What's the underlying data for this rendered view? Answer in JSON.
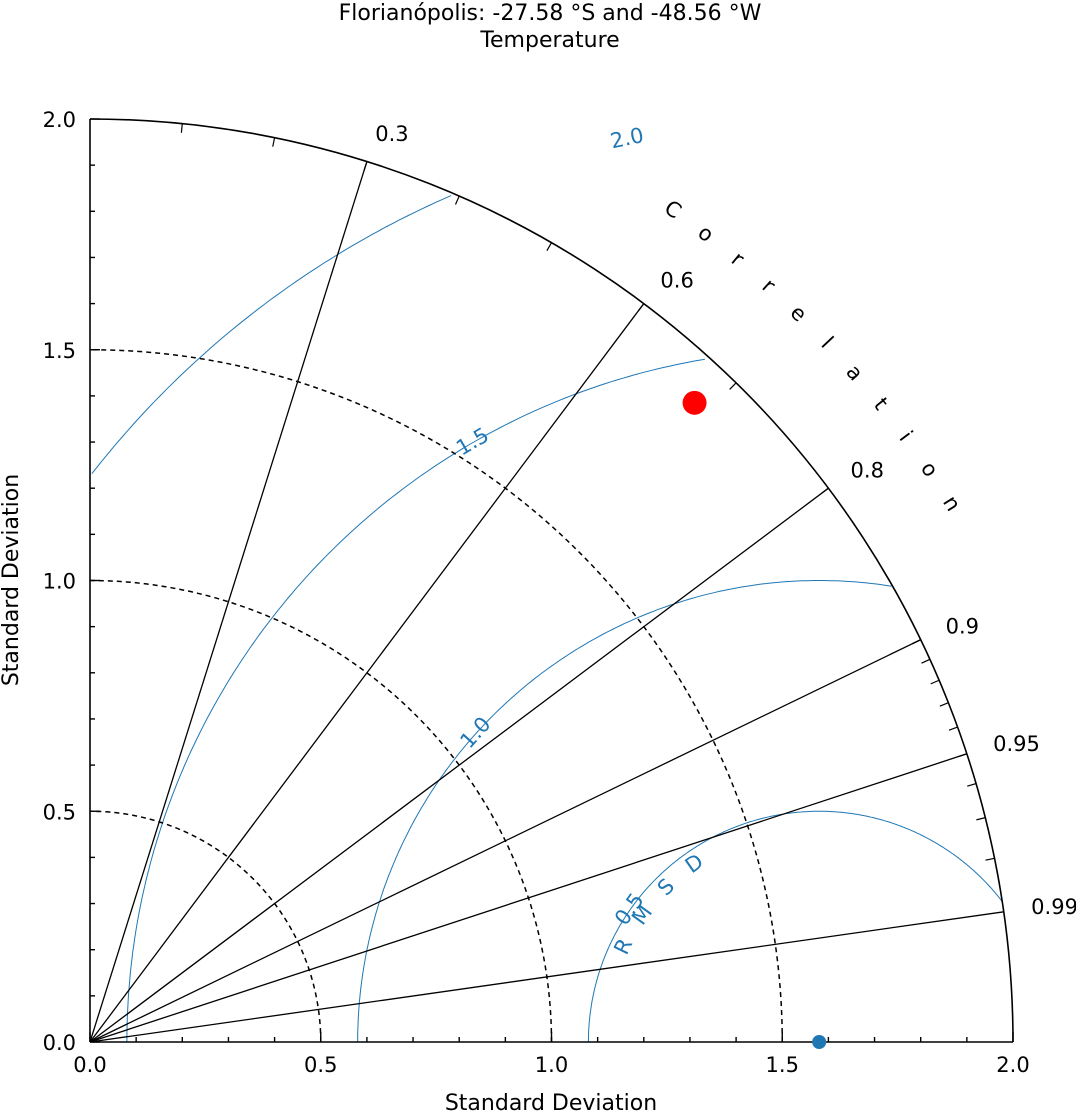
{
  "chart_data": {
    "type": "taylor",
    "title": "Florianópolis: -27.58 °S and -48.56 °W",
    "subtitle": "Temperature",
    "xlabel": "Standard Deviation",
    "ylabel": "Standard Deviation",
    "xlim": [
      0,
      2
    ],
    "ylim": [
      0,
      2
    ],
    "std_ticks": [
      0.0,
      0.5,
      1.0,
      1.5,
      2.0
    ],
    "std_tick_labels": [
      "0.0",
      "0.5",
      "1.0",
      "1.5",
      "2.0"
    ],
    "std_minor_step": 0.1,
    "std_dashed_arcs": [
      0.5,
      1.0,
      1.5
    ],
    "correlation_label": "Correlation",
    "correlation_ticks": [
      0.3,
      0.6,
      0.8,
      0.9,
      0.95,
      0.99
    ],
    "correlation_tick_labels": [
      "0.3",
      "0.6",
      "0.8",
      "0.9",
      "0.95",
      "0.99"
    ],
    "rmsd_label": "RMSD",
    "rmsd_contours": [
      0.5,
      1.0,
      1.5,
      2.0
    ],
    "rmsd_contour_labels": [
      "0.5",
      "1.0",
      "1.5",
      "2.0"
    ],
    "reference": {
      "std": 1.58,
      "color": "#1f77b4"
    },
    "points": [
      {
        "x": 1.31,
        "y": 1.385,
        "color": "#ff0000"
      }
    ]
  }
}
